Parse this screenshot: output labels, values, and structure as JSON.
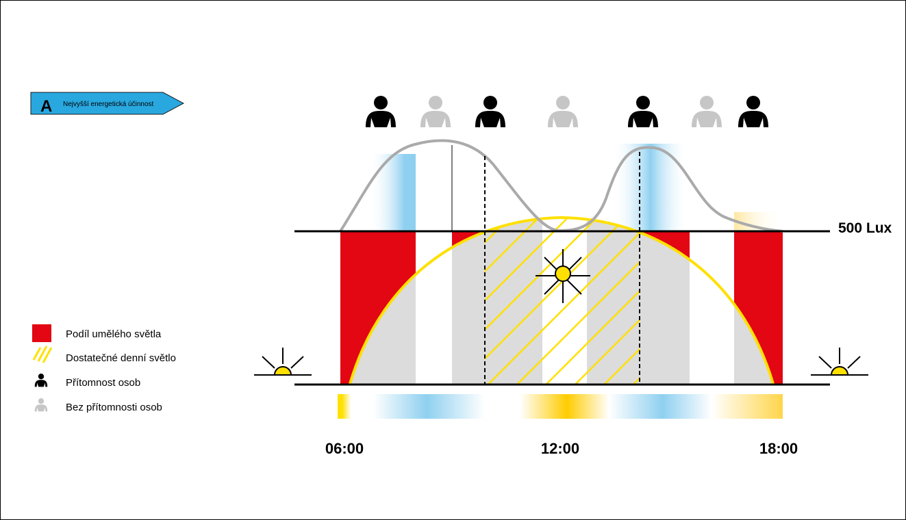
{
  "energy_class": {
    "letter": "A",
    "text": "Nejvyšší energetická účinnost",
    "color": "#29a8e0"
  },
  "lux_label": "500 Lux",
  "time_labels": [
    "06:00",
    "12:00",
    "18:00"
  ],
  "legend": [
    {
      "key": "artificial",
      "label": "Podíl umělého světla",
      "color": "#e30613"
    },
    {
      "key": "daylight",
      "label": "Dostatečné denní světlo",
      "color": "#ffe000"
    },
    {
      "key": "present",
      "label": "Přítomnost osob",
      "color": "#000000"
    },
    {
      "key": "absent",
      "label": "Bez přítomnosti osob",
      "color": "#c6c6c6"
    }
  ],
  "occupancy": [
    "present",
    "absent",
    "present",
    "absent",
    "present",
    "absent",
    "present"
  ],
  "icons": {
    "person": "person-icon",
    "sun": "sun-icon",
    "sunrise": "sunrise-icon",
    "sunset": "sunset-icon"
  },
  "colors": {
    "artificial": "#e30613",
    "daylight": "#ffe000",
    "grey_band": "#dcdcdc",
    "sky_blue": "#8fd0f0",
    "warm_yellow": "#ffd000",
    "curve": "#aaaaaa",
    "person_present": "#000000",
    "person_absent": "#c6c6c6"
  }
}
